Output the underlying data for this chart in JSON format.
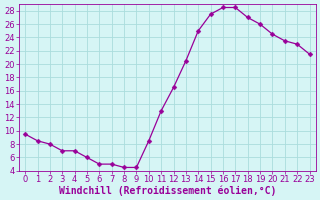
{
  "x": [
    0,
    1,
    2,
    3,
    4,
    5,
    6,
    7,
    8,
    9,
    10,
    11,
    12,
    13,
    14,
    15,
    16,
    17,
    18,
    19,
    20,
    21,
    22,
    23
  ],
  "y": [
    9.5,
    8.5,
    8.0,
    7.0,
    7.0,
    6.0,
    5.0,
    5.0,
    4.5,
    4.5,
    8.5,
    13.0,
    16.5,
    20.5,
    25.0,
    27.5,
    28.5,
    28.5,
    27.0,
    26.0,
    24.5,
    23.5,
    23.0,
    21.5
  ],
  "line_color": "#990099",
  "marker": "D",
  "marker_size": 2.5,
  "bg_color": "#d6f5f5",
  "grid_color": "#aadddd",
  "xlabel": "Windchill (Refroidissement éolien,°C)",
  "xlim": [
    -0.5,
    23.5
  ],
  "ylim": [
    4,
    29
  ],
  "yticks": [
    4,
    6,
    8,
    10,
    12,
    14,
    16,
    18,
    20,
    22,
    24,
    26,
    28
  ],
  "xticks": [
    0,
    1,
    2,
    3,
    4,
    5,
    6,
    7,
    8,
    9,
    10,
    11,
    12,
    13,
    14,
    15,
    16,
    17,
    18,
    19,
    20,
    21,
    22,
    23
  ],
  "tick_fontsize": 6.0,
  "xlabel_fontsize": 7.0
}
